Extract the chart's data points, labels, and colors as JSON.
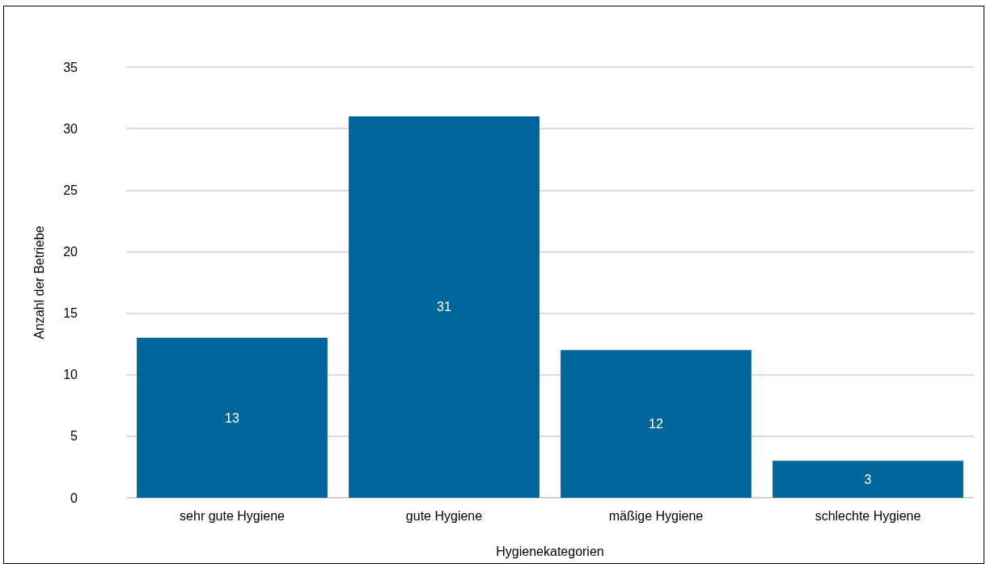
{
  "chart_data": {
    "type": "bar",
    "xlabel": "Hygienekategorien",
    "ylabel": "Anzahl der Betriebe",
    "categories": [
      "sehr gute Hygiene",
      "gute Hygiene",
      "mäßige Hygiene",
      "schlechte Hygiene"
    ],
    "values": [
      13,
      31,
      12,
      3
    ],
    "color": "#006699",
    "ylim": [
      0,
      35
    ],
    "yticks": [
      0,
      5,
      10,
      15,
      20,
      25,
      30,
      35
    ],
    "grid": "y",
    "data_labels": true
  }
}
